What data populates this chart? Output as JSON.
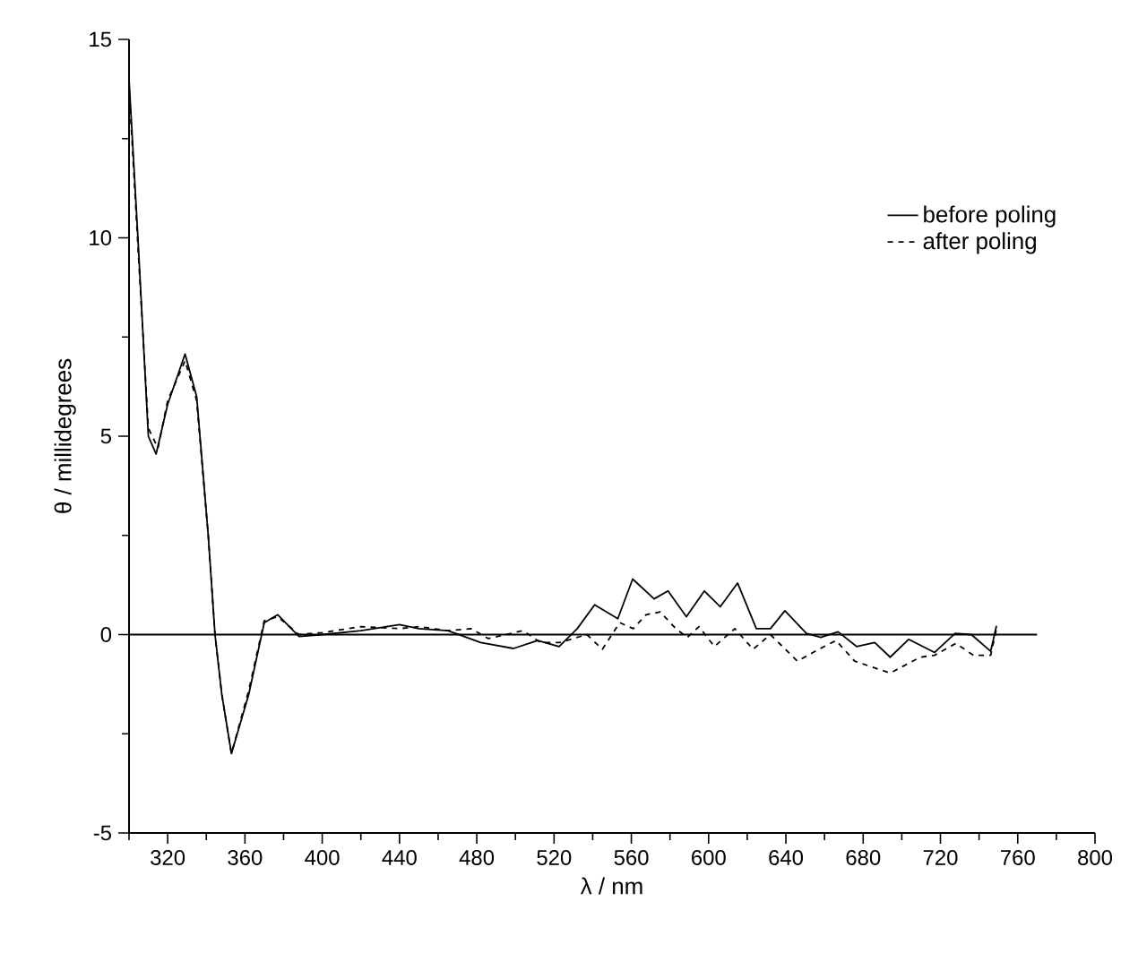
{
  "chart_data": {
    "type": "line",
    "xlabel": "λ / nm",
    "ylabel": "θ / millidegrees",
    "xlim": [
      300,
      800
    ],
    "ylim": [
      -5,
      15
    ],
    "xticks": [
      {
        "value": 300,
        "label": null
      },
      320,
      {
        "value": 340,
        "label": null
      },
      360,
      {
        "value": 380,
        "label": null
      },
      400,
      {
        "value": 420,
        "label": null
      },
      440,
      {
        "value": 460,
        "label": null
      },
      480,
      {
        "value": 500,
        "label": null
      },
      520,
      {
        "value": 540,
        "label": null
      },
      560,
      {
        "value": 580,
        "label": null
      },
      600,
      {
        "value": 620,
        "label": null
      },
      640,
      {
        "value": 660,
        "label": null
      },
      680,
      {
        "value": 700,
        "label": null
      },
      720,
      {
        "value": 740,
        "label": null
      },
      760,
      {
        "value": 780,
        "label": null
      },
      800
    ],
    "yticks": [
      -5,
      {
        "value": -2.5,
        "label": null
      },
      0,
      {
        "value": 2.5,
        "label": null
      },
      5,
      {
        "value": 7.5,
        "label": null
      },
      10,
      {
        "value": 12.5,
        "label": null
      },
      15
    ],
    "ref_lines": [
      {
        "axis": "y",
        "value": 0,
        "color": "#000000"
      }
    ],
    "legend": "top right",
    "series": [
      {
        "name": "before poling",
        "color": "#000000",
        "line_style": "solid",
        "x": [
          300,
          304.6,
          310,
          314,
          320,
          329,
          335,
          341,
          344.5,
          348,
          353,
          362,
          370,
          377,
          388,
          400,
          420,
          440,
          450,
          465,
          482,
          499,
          511.5,
          522.6,
          532,
          541,
          553,
          560.7,
          571.8,
          579,
          588.5,
          597.8,
          606,
          615,
          624.7,
          632,
          639.5,
          650.6,
          658,
          667,
          676.6,
          686,
          694,
          703.5,
          717,
          727.6,
          736,
          746,
          749
        ],
        "values": [
          14.0,
          10.0,
          5.0,
          4.55,
          5.8,
          7.07,
          6.0,
          2.5,
          0,
          -1.5,
          -3.0,
          -1.5,
          0.3,
          0.5,
          -0.05,
          0.0,
          0.1,
          0.25,
          0.15,
          0.1,
          -0.2,
          -0.35,
          -0.15,
          -0.3,
          0.15,
          0.75,
          0.4,
          1.4,
          0.9,
          1.1,
          0.45,
          1.1,
          0.7,
          1.3,
          0.15,
          0.15,
          0.6,
          0.03,
          -0.07,
          0.07,
          -0.3,
          -0.2,
          -0.57,
          -0.12,
          -0.45,
          0.03,
          0,
          -0.42,
          0.22
        ]
      },
      {
        "name": "after poling",
        "color": "#000000",
        "line_style": "dashed",
        "x": [
          300,
          304.6,
          310,
          315,
          320,
          329,
          335,
          341,
          344.5,
          348,
          353,
          362,
          370,
          377,
          388,
          400,
          420,
          440,
          450,
          465,
          477,
          486,
          495,
          504,
          513,
          523,
          537,
          545,
          554,
          561,
          567.6,
          575,
          583,
          589,
          595,
          603,
          613.6,
          623,
          632,
          646,
          657,
          666,
          675.6,
          694,
          709.5,
          717,
          728,
          737,
          746,
          749
        ],
        "values": [
          13.8,
          9.8,
          5.2,
          4.7,
          5.9,
          6.9,
          5.9,
          2.5,
          0,
          -1.5,
          -3.0,
          -1.4,
          0.35,
          0.45,
          0.0,
          0.05,
          0.2,
          0.15,
          0.2,
          0.1,
          0.15,
          -0.1,
          0,
          0.1,
          -0.2,
          -0.2,
          0,
          -0.37,
          0.3,
          0.15,
          0.5,
          0.57,
          0.15,
          -0.07,
          0.2,
          -0.3,
          0.15,
          -0.37,
          0,
          -0.67,
          -0.37,
          -0.15,
          -0.67,
          -0.97,
          -0.57,
          -0.52,
          -0.22,
          -0.52,
          -0.52,
          0.15
        ]
      }
    ]
  }
}
